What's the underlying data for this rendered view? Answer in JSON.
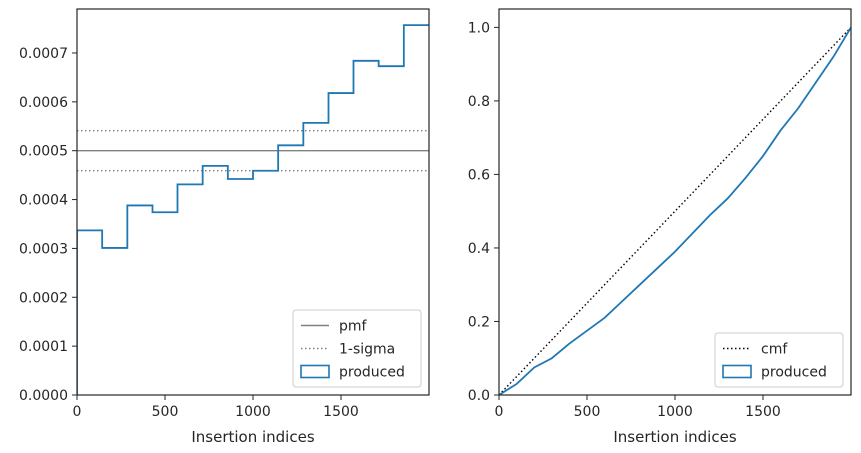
{
  "chart_data": [
    {
      "type": "line",
      "xlabel": "Insertion indices",
      "ylabel": "",
      "xlim": [
        0,
        2000
      ],
      "ylim": [
        0,
        0.00079
      ],
      "xticks": [
        0,
        500,
        1000,
        1500
      ],
      "xtick_labels": [
        "0",
        "500",
        "1000",
        "1500"
      ],
      "yticks": [
        0,
        0.0001,
        0.0002,
        0.0003,
        0.0004,
        0.0005,
        0.0006,
        0.0007
      ],
      "ytick_labels": [
        "0.0000",
        "0.0001",
        "0.0002",
        "0.0003",
        "0.0004",
        "0.0005",
        "0.0006",
        "0.0007"
      ],
      "grid": false,
      "legend_position": "lower-right",
      "series": [
        {
          "name": "pmf",
          "style": "solid",
          "color": "#808080",
          "x": [
            0,
            2000
          ],
          "y": [
            0.0005,
            0.0005
          ]
        },
        {
          "name": "1-sigma",
          "style": "dotted",
          "color": "#808080",
          "x": [
            0,
            2000
          ],
          "y": [
            0.000541,
            0.000541
          ]
        },
        {
          "name": "1-sigma",
          "style": "dotted",
          "color": "#808080",
          "x": [
            0,
            2000
          ],
          "y": [
            0.000459,
            0.000459
          ],
          "legend": false
        },
        {
          "name": "produced",
          "style": "step",
          "color": "#1f77b4",
          "bin_edges": [
            0,
            143,
            286,
            429,
            571,
            714,
            857,
            1000,
            1143,
            1286,
            1429,
            1571,
            1714,
            1857,
            2000
          ],
          "values": [
            0.000337,
            0.000301,
            0.000388,
            0.000374,
            0.000431,
            0.000469,
            0.000442,
            0.000459,
            0.000511,
            0.000557,
            0.000618,
            0.000684,
            0.000673,
            0.000757
          ]
        }
      ]
    },
    {
      "type": "line",
      "xlabel": "Insertion indices",
      "ylabel": "",
      "xlim": [
        0,
        2000
      ],
      "ylim": [
        0,
        1.05
      ],
      "xticks": [
        0,
        500,
        1000,
        1500
      ],
      "xtick_labels": [
        "0",
        "500",
        "1000",
        "1500"
      ],
      "yticks": [
        0,
        0.2,
        0.4,
        0.6,
        0.8,
        1.0
      ],
      "ytick_labels": [
        "0.0",
        "0.2",
        "0.4",
        "0.6",
        "0.8",
        "1.0"
      ],
      "grid": false,
      "legend_position": "lower-right",
      "series": [
        {
          "name": "cmf",
          "style": "dotted",
          "color": "#000000",
          "x": [
            0,
            2000
          ],
          "y": [
            0,
            1.0
          ]
        },
        {
          "name": "produced",
          "style": "step",
          "color": "#1f77b4",
          "x": [
            0,
            100,
            200,
            300,
            400,
            500,
            600,
            700,
            800,
            900,
            1000,
            1100,
            1200,
            1300,
            1400,
            1500,
            1600,
            1700,
            1800,
            1900,
            2000
          ],
          "y": [
            0,
            0.03,
            0.075,
            0.1,
            0.14,
            0.175,
            0.21,
            0.255,
            0.3,
            0.345,
            0.39,
            0.44,
            0.49,
            0.535,
            0.59,
            0.65,
            0.72,
            0.78,
            0.85,
            0.92,
            1.0
          ]
        }
      ]
    }
  ]
}
